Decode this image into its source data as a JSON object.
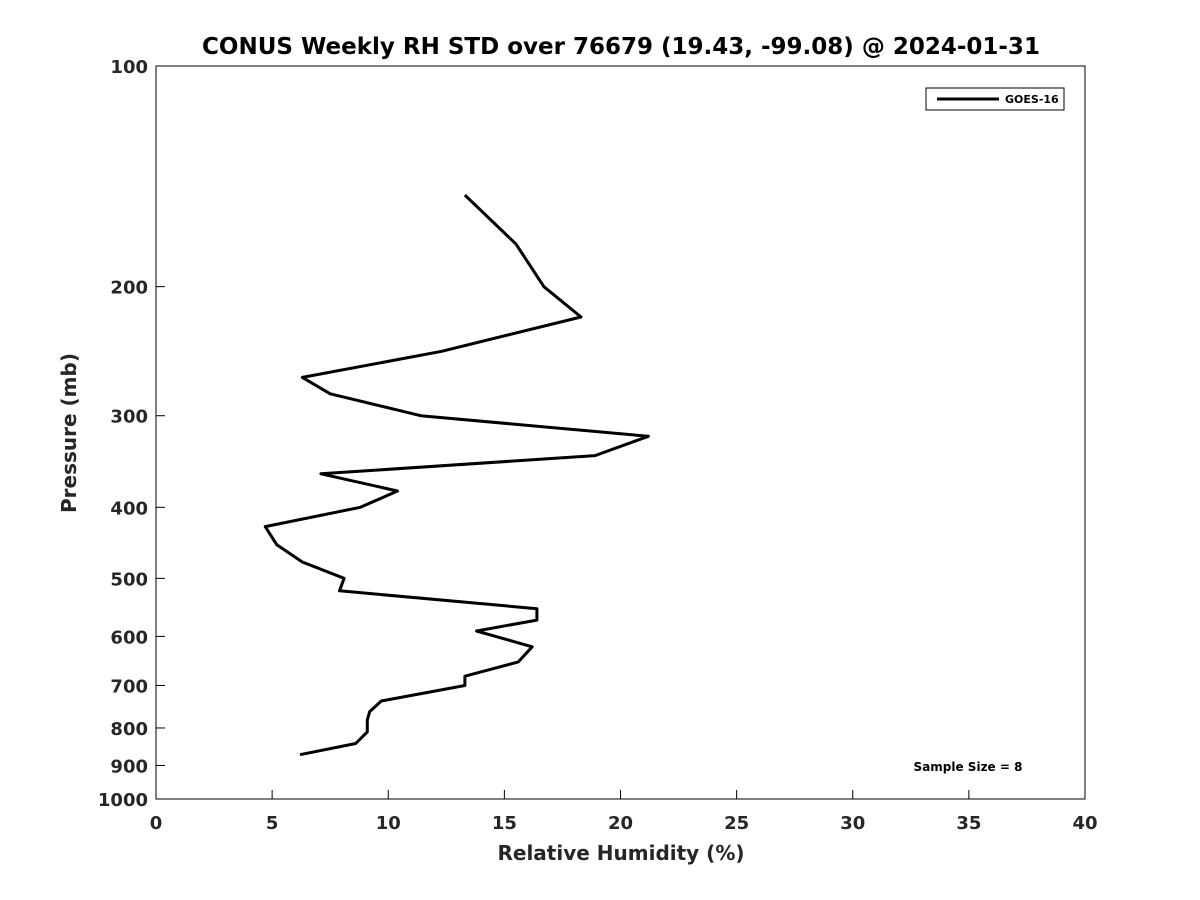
{
  "chart_data": {
    "type": "line",
    "title": "CONUS Weekly RH STD over 76679 (19.43, -99.08) @ 2024-01-31",
    "xlabel": "Relative Humidity (%)",
    "ylabel": "Pressure (mb)",
    "xlim": [
      0,
      40
    ],
    "ylim": [
      100,
      1000
    ],
    "y_scale": "log",
    "y_reversed": true,
    "x_ticks": [
      "0",
      "5",
      "10",
      "15",
      "20",
      "25",
      "30",
      "35",
      "40"
    ],
    "y_ticks": [
      "100",
      "200",
      "300",
      "400",
      "500",
      "600",
      "700",
      "800",
      "900",
      "1000"
    ],
    "grid": false,
    "legend_position": "top-right",
    "annotation": "Sample Size = 8",
    "series": [
      {
        "name": "GOES-16",
        "color": "#000000",
        "points": [
          {
            "x": 13.3,
            "p": 150
          },
          {
            "x": 15.5,
            "p": 175
          },
          {
            "x": 16.7,
            "p": 200
          },
          {
            "x": 18.3,
            "p": 220
          },
          {
            "x": 12.3,
            "p": 245
          },
          {
            "x": 6.3,
            "p": 266
          },
          {
            "x": 7.5,
            "p": 280
          },
          {
            "x": 11.4,
            "p": 300
          },
          {
            "x": 21.2,
            "p": 320
          },
          {
            "x": 18.9,
            "p": 340
          },
          {
            "x": 7.1,
            "p": 360
          },
          {
            "x": 10.4,
            "p": 380
          },
          {
            "x": 8.8,
            "p": 400
          },
          {
            "x": 4.7,
            "p": 425
          },
          {
            "x": 5.2,
            "p": 450
          },
          {
            "x": 6.3,
            "p": 475
          },
          {
            "x": 8.1,
            "p": 500
          },
          {
            "x": 7.9,
            "p": 520
          },
          {
            "x": 16.4,
            "p": 550
          },
          {
            "x": 16.4,
            "p": 570
          },
          {
            "x": 13.8,
            "p": 590
          },
          {
            "x": 16.2,
            "p": 620
          },
          {
            "x": 15.6,
            "p": 650
          },
          {
            "x": 13.3,
            "p": 680
          },
          {
            "x": 13.3,
            "p": 700
          },
          {
            "x": 9.7,
            "p": 735
          },
          {
            "x": 9.2,
            "p": 760
          },
          {
            "x": 9.1,
            "p": 780
          },
          {
            "x": 9.1,
            "p": 810
          },
          {
            "x": 8.6,
            "p": 840
          },
          {
            "x": 6.2,
            "p": 870
          }
        ]
      }
    ]
  }
}
